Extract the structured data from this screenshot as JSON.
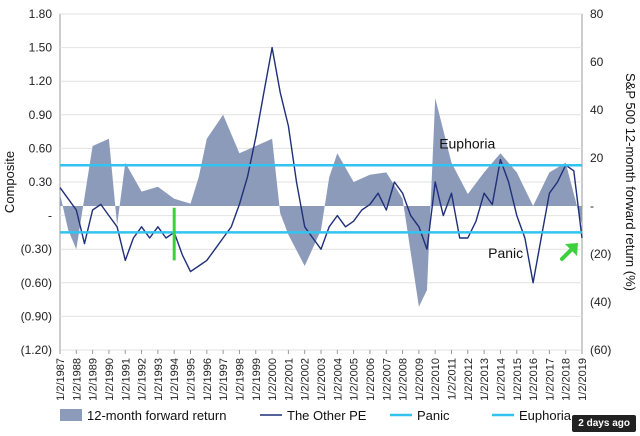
{
  "badge": "2 days ago",
  "chart_data": {
    "type": "line",
    "ylabel_left": "Composite",
    "ylabel_right": "S&P 500 12-month forward return (%)",
    "ylim_left": [
      -1.2,
      1.8
    ],
    "ylim_right": [
      -60,
      80
    ],
    "left_ticks": [
      {
        "v": 1.8,
        "label": "1.80"
      },
      {
        "v": 1.5,
        "label": "1.50"
      },
      {
        "v": 1.2,
        "label": "1.20"
      },
      {
        "v": 0.9,
        "label": "0.90"
      },
      {
        "v": 0.6,
        "label": "0.60"
      },
      {
        "v": 0.3,
        "label": "0.30"
      },
      {
        "v": 0.0,
        "label": "-"
      },
      {
        "v": -0.3,
        "label": "(0.30)"
      },
      {
        "v": -0.6,
        "label": "(0.60)"
      },
      {
        "v": -0.9,
        "label": "(0.90)"
      },
      {
        "v": -1.2,
        "label": "(1.20)"
      }
    ],
    "right_ticks": [
      {
        "v": 80,
        "label": "80"
      },
      {
        "v": 60,
        "label": "60"
      },
      {
        "v": 40,
        "label": "40"
      },
      {
        "v": 20,
        "label": "20"
      },
      {
        "v": 0,
        "label": "-"
      },
      {
        "v": -20,
        "label": "(20)"
      },
      {
        "v": -40,
        "label": "(40)"
      },
      {
        "v": -60,
        "label": "(60)"
      }
    ],
    "x_labels": [
      "1/2/1987",
      "1/2/1988",
      "1/2/1989",
      "1/2/1990",
      "1/2/1991",
      "1/2/1992",
      "1/2/1993",
      "1/2/1994",
      "1/2/1995",
      "1/2/1996",
      "1/2/1997",
      "1/2/1998",
      "1/2/1999",
      "1/2/2000",
      "1/2/2001",
      "1/2/2002",
      "1/2/2003",
      "1/2/2004",
      "1/2/2005",
      "1/2/2006",
      "1/2/2007",
      "1/2/2008",
      "1/2/2009",
      "1/2/2010",
      "1/2/2011",
      "1/2/2012",
      "1/2/2013",
      "1/2/2014",
      "1/2/2015",
      "1/2/2016",
      "1/2/2017",
      "1/2/2018",
      "1/2/2019"
    ],
    "thresholds": [
      {
        "name": "Panic",
        "value": -0.15,
        "color": "#33c3f0"
      },
      {
        "name": "Euphoria",
        "value": 0.45,
        "color": "#33c3f0"
      }
    ],
    "annotations": [
      {
        "text": "Euphoria",
        "x": "1/2/2010",
        "y": 0.6
      },
      {
        "text": "Panic",
        "x": "1/2/2013",
        "y": -0.38
      }
    ],
    "series": [
      {
        "name": "12-month forward return",
        "kind": "area",
        "axis": "right",
        "color": "#8d9bbb",
        "x": [
          "1/2/1987",
          "1/2/1987",
          "1/2/1988",
          "1/2/1989",
          "1/2/1990",
          "1/2/1990",
          "1/2/1991",
          "1/2/1992",
          "1/2/1993",
          "1/2/1994",
          "1/2/1995",
          "1/2/1995",
          "1/2/1996",
          "1/2/1997",
          "1/2/1998",
          "1/2/1999",
          "1/2/2000",
          "1/2/2000",
          "1/2/2001",
          "1/2/2002",
          "1/2/2003",
          "1/2/2003",
          "1/2/2004",
          "1/2/2005",
          "1/2/2006",
          "1/2/2007",
          "1/2/2008",
          "1/2/2009",
          "1/2/2009",
          "1/2/2010",
          "1/2/2011",
          "1/2/2012",
          "1/2/2013",
          "1/2/2014",
          "1/2/2015",
          "1/2/2016",
          "1/2/2017",
          "1/2/2018",
          "1/2/2019"
        ],
        "values": [
          5,
          -10,
          -18,
          25,
          28,
          -8,
          18,
          6,
          8,
          3,
          1,
          12,
          28,
          38,
          22,
          25,
          28,
          -3,
          -12,
          -25,
          -10,
          12,
          22,
          10,
          13,
          14,
          3,
          -42,
          -35,
          45,
          18,
          5,
          14,
          22,
          14,
          0,
          14,
          18,
          -8
        ]
      },
      {
        "name": "The Other PE",
        "kind": "line",
        "axis": "left",
        "color": "#1f2f78",
        "x": [
          "1/2/1987",
          "1/2/1987",
          "1/2/1988",
          "1/2/1988",
          "1/2/1989",
          "1/2/1989",
          "1/2/1990",
          "1/2/1990",
          "1/2/1991",
          "1/2/1991",
          "1/2/1992",
          "1/2/1992",
          "1/2/1993",
          "1/2/1993",
          "1/2/1994",
          "1/2/1994",
          "1/2/1995",
          "1/2/1995",
          "1/2/1996",
          "1/2/1996",
          "1/2/1997",
          "1/2/1997",
          "1/2/1998",
          "1/2/1998",
          "1/2/1999",
          "1/2/1999",
          "1/2/2000",
          "1/2/2000",
          "1/2/2001",
          "1/2/2001",
          "1/2/2002",
          "1/2/2002",
          "1/2/2003",
          "1/2/2003",
          "1/2/2004",
          "1/2/2004",
          "1/2/2005",
          "1/2/2005",
          "1/2/2006",
          "1/2/2006",
          "1/2/2007",
          "1/2/2007",
          "1/2/2008",
          "1/2/2008",
          "1/2/2009",
          "1/2/2009",
          "1/2/2010",
          "1/2/2010",
          "1/2/2011",
          "1/2/2011",
          "1/2/2012",
          "1/2/2012",
          "1/2/2013",
          "1/2/2013",
          "1/2/2014",
          "1/2/2014",
          "1/2/2015",
          "1/2/2015",
          "1/2/2016",
          "1/2/2016",
          "1/2/2017",
          "1/2/2017",
          "1/2/2018",
          "1/2/2018",
          "1/2/2019"
        ],
        "values": [
          0.25,
          0.15,
          0.05,
          -0.25,
          0.05,
          0.1,
          0.0,
          -0.1,
          -0.4,
          -0.2,
          -0.1,
          -0.2,
          -0.1,
          -0.2,
          -0.15,
          -0.35,
          -0.5,
          -0.45,
          -0.4,
          -0.3,
          -0.2,
          -0.1,
          0.1,
          0.35,
          0.7,
          1.1,
          1.5,
          1.1,
          0.8,
          0.3,
          -0.1,
          -0.2,
          -0.3,
          -0.1,
          0.0,
          -0.1,
          -0.05,
          0.05,
          0.1,
          0.2,
          0.05,
          0.3,
          0.2,
          0.0,
          -0.1,
          -0.3,
          0.3,
          0.0,
          0.2,
          -0.2,
          -0.2,
          -0.05,
          0.2,
          0.1,
          0.5,
          0.3,
          0.0,
          -0.2,
          -0.6,
          -0.2,
          0.2,
          0.3,
          0.45,
          0.4,
          -0.2
        ]
      }
    ],
    "legend": {
      "placement": "bottom",
      "entries": [
        {
          "label": "12-month forward return",
          "kind": "area",
          "color": "#8d9bbb"
        },
        {
          "label": "The Other PE",
          "kind": "line",
          "color": "#1f2f78"
        },
        {
          "label": "Panic",
          "kind": "line",
          "color": "#33c3f0"
        },
        {
          "label": "Euphoria",
          "kind": "line",
          "color": "#33c3f0"
        }
      ]
    },
    "markers": [
      {
        "name": "green-marker-1994",
        "x": "1/2/1994",
        "y_from": 0.07,
        "y_to": -0.4,
        "color": "#3ecf3e"
      },
      {
        "name": "green-arrow-2019",
        "x": "1/2/2019",
        "y": -0.28,
        "color": "#3ecf3e"
      }
    ]
  }
}
